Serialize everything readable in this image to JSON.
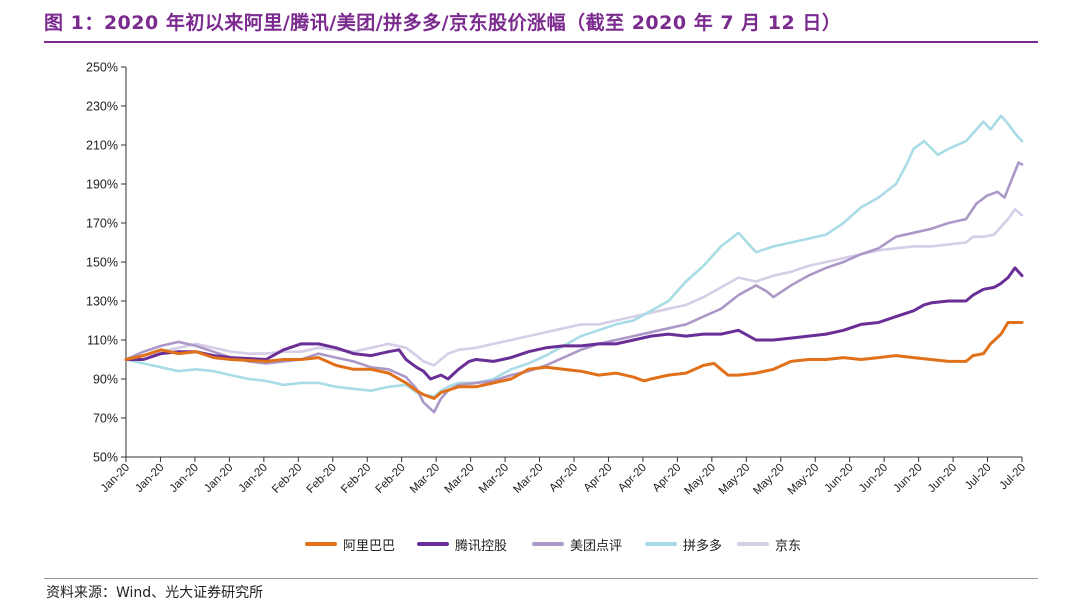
{
  "figure": {
    "title": "图 1：2020 年初以来阿里/腾讯/美团/拼多多/京东股价涨幅（截至 2020 年 7 月 12 日）",
    "source": "资料来源：Wind、光大证券研究所"
  },
  "colors": {
    "alibaba": "#e0711a",
    "tencent": "#6a2f96",
    "meituan": "#ac98c8",
    "pdd": "#a9dce6",
    "jd": "#d6cde6",
    "title": "#7b2a8e"
  },
  "chart_data": {
    "type": "line",
    "title": "2020 年初以来阿里/腾讯/美团/拼多多/京东股价涨幅（截至 2020 年 7 月 12 日）",
    "xlabel": "",
    "ylabel": "",
    "ylim": [
      50,
      250
    ],
    "yticks": [
      50,
      70,
      90,
      110,
      130,
      150,
      170,
      190,
      210,
      230,
      250
    ],
    "ytick_labels": [
      "50%",
      "70%",
      "90%",
      "110%",
      "130%",
      "150%",
      "170%",
      "190%",
      "210%",
      "230%",
      "250%"
    ],
    "grid": false,
    "legend_position": "bottom",
    "x_tick_labels": [
      "Jan-20",
      "Jan-20",
      "Jan-20",
      "Jan-20",
      "Jan-20",
      "Feb-20",
      "Feb-20",
      "Feb-20",
      "Feb-20",
      "Mar-20",
      "Mar-20",
      "Mar-20",
      "Mar-20",
      "Apr-20",
      "Apr-20",
      "Apr-20",
      "Apr-20",
      "May-20",
      "May-20",
      "May-20",
      "May-20",
      "Jun-20",
      "Jun-20",
      "Jun-20",
      "Jun-20",
      "Jul-20",
      "Jul-20"
    ],
    "x_index_range": [
      0,
      130
    ],
    "series": [
      {
        "name": "阿里巴巴",
        "key": "alibaba",
        "points": [
          [
            0,
            100
          ],
          [
            5,
            102
          ],
          [
            10,
            105
          ],
          [
            15,
            103
          ],
          [
            20,
            104
          ],
          [
            25,
            101
          ],
          [
            30,
            100
          ],
          [
            40,
            99
          ],
          [
            45,
            100
          ],
          [
            50,
            100
          ],
          [
            55,
            101
          ],
          [
            60,
            97
          ],
          [
            65,
            95
          ],
          [
            70,
            95
          ],
          [
            75,
            93
          ],
          [
            80,
            88
          ],
          [
            83,
            84
          ],
          [
            85,
            82
          ],
          [
            88,
            80
          ],
          [
            90,
            83
          ],
          [
            95,
            86
          ],
          [
            100,
            86
          ],
          [
            105,
            88
          ],
          [
            110,
            90
          ],
          [
            115,
            95
          ],
          [
            120,
            96
          ],
          [
            125,
            95
          ],
          [
            130,
            94
          ],
          [
            135,
            92
          ],
          [
            140,
            93
          ],
          [
            145,
            91
          ],
          [
            148,
            89
          ],
          [
            150,
            90
          ],
          [
            155,
            92
          ],
          [
            160,
            93
          ],
          [
            165,
            97
          ],
          [
            168,
            98
          ],
          [
            170,
            95
          ],
          [
            172,
            92
          ],
          [
            175,
            92
          ],
          [
            180,
            93
          ],
          [
            185,
            95
          ],
          [
            190,
            99
          ],
          [
            195,
            100
          ],
          [
            200,
            100
          ],
          [
            205,
            101
          ],
          [
            210,
            100
          ],
          [
            215,
            101
          ],
          [
            220,
            102
          ],
          [
            225,
            101
          ],
          [
            230,
            100
          ],
          [
            235,
            99
          ],
          [
            240,
            99
          ],
          [
            242,
            102
          ],
          [
            245,
            103
          ],
          [
            247,
            108
          ],
          [
            250,
            113
          ],
          [
            252,
            119
          ],
          [
            256,
            119
          ]
        ]
      },
      {
        "name": "腾讯控股",
        "key": "tencent",
        "points": [
          [
            0,
            100
          ],
          [
            5,
            100
          ],
          [
            10,
            103
          ],
          [
            15,
            104
          ],
          [
            20,
            104
          ],
          [
            25,
            102
          ],
          [
            30,
            101
          ],
          [
            40,
            100
          ],
          [
            45,
            105
          ],
          [
            50,
            108
          ],
          [
            55,
            108
          ],
          [
            60,
            106
          ],
          [
            65,
            103
          ],
          [
            70,
            102
          ],
          [
            75,
            104
          ],
          [
            78,
            105
          ],
          [
            80,
            100
          ],
          [
            83,
            96
          ],
          [
            85,
            94
          ],
          [
            87,
            90
          ],
          [
            90,
            92
          ],
          [
            92,
            90
          ],
          [
            95,
            95
          ],
          [
            98,
            99
          ],
          [
            100,
            100
          ],
          [
            105,
            99
          ],
          [
            110,
            101
          ],
          [
            115,
            104
          ],
          [
            120,
            106
          ],
          [
            125,
            107
          ],
          [
            130,
            107
          ],
          [
            135,
            108
          ],
          [
            140,
            108
          ],
          [
            145,
            110
          ],
          [
            150,
            112
          ],
          [
            155,
            113
          ],
          [
            160,
            112
          ],
          [
            165,
            113
          ],
          [
            170,
            113
          ],
          [
            175,
            115
          ],
          [
            180,
            110
          ],
          [
            185,
            110
          ],
          [
            190,
            111
          ],
          [
            195,
            112
          ],
          [
            200,
            113
          ],
          [
            205,
            115
          ],
          [
            210,
            118
          ],
          [
            215,
            119
          ],
          [
            220,
            122
          ],
          [
            225,
            125
          ],
          [
            228,
            128
          ],
          [
            230,
            129
          ],
          [
            235,
            130
          ],
          [
            240,
            130
          ],
          [
            242,
            133
          ],
          [
            245,
            136
          ],
          [
            248,
            137
          ],
          [
            250,
            139
          ],
          [
            252,
            142
          ],
          [
            254,
            147
          ],
          [
            256,
            143
          ]
        ]
      },
      {
        "name": "美团点评",
        "key": "meituan",
        "points": [
          [
            0,
            100
          ],
          [
            5,
            104
          ],
          [
            10,
            107
          ],
          [
            15,
            109
          ],
          [
            20,
            107
          ],
          [
            25,
            104
          ],
          [
            30,
            101
          ],
          [
            35,
            99
          ],
          [
            40,
            98
          ],
          [
            45,
            99
          ],
          [
            50,
            100
          ],
          [
            55,
            103
          ],
          [
            60,
            101
          ],
          [
            65,
            99
          ],
          [
            70,
            96
          ],
          [
            75,
            95
          ],
          [
            80,
            91
          ],
          [
            83,
            85
          ],
          [
            85,
            78
          ],
          [
            88,
            73
          ],
          [
            90,
            80
          ],
          [
            92,
            84
          ],
          [
            95,
            87
          ],
          [
            100,
            88
          ],
          [
            105,
            89
          ],
          [
            110,
            92
          ],
          [
            115,
            94
          ],
          [
            120,
            97
          ],
          [
            125,
            101
          ],
          [
            130,
            105
          ],
          [
            135,
            108
          ],
          [
            140,
            110
          ],
          [
            145,
            112
          ],
          [
            150,
            114
          ],
          [
            155,
            116
          ],
          [
            160,
            118
          ],
          [
            165,
            122
          ],
          [
            170,
            126
          ],
          [
            175,
            133
          ],
          [
            180,
            138
          ],
          [
            183,
            135
          ],
          [
            185,
            132
          ],
          [
            190,
            138
          ],
          [
            195,
            143
          ],
          [
            200,
            147
          ],
          [
            205,
            150
          ],
          [
            210,
            154
          ],
          [
            215,
            157
          ],
          [
            220,
            163
          ],
          [
            225,
            165
          ],
          [
            230,
            167
          ],
          [
            235,
            170
          ],
          [
            240,
            172
          ],
          [
            243,
            180
          ],
          [
            246,
            184
          ],
          [
            249,
            186
          ],
          [
            251,
            183
          ],
          [
            253,
            192
          ],
          [
            255,
            201
          ],
          [
            256,
            200
          ]
        ]
      },
      {
        "name": "拼多多",
        "key": "pdd",
        "points": [
          [
            0,
            100
          ],
          [
            5,
            98
          ],
          [
            10,
            96
          ],
          [
            15,
            94
          ],
          [
            20,
            95
          ],
          [
            25,
            94
          ],
          [
            30,
            92
          ],
          [
            35,
            90
          ],
          [
            40,
            89
          ],
          [
            45,
            87
          ],
          [
            50,
            88
          ],
          [
            55,
            88
          ],
          [
            60,
            86
          ],
          [
            65,
            85
          ],
          [
            70,
            84
          ],
          [
            75,
            86
          ],
          [
            80,
            87
          ],
          [
            83,
            83
          ],
          [
            85,
            82
          ],
          [
            88,
            81
          ],
          [
            90,
            84
          ],
          [
            92,
            86
          ],
          [
            95,
            88
          ],
          [
            100,
            88
          ],
          [
            105,
            90
          ],
          [
            110,
            95
          ],
          [
            115,
            98
          ],
          [
            120,
            102
          ],
          [
            125,
            107
          ],
          [
            130,
            112
          ],
          [
            135,
            115
          ],
          [
            140,
            118
          ],
          [
            145,
            120
          ],
          [
            150,
            125
          ],
          [
            155,
            130
          ],
          [
            160,
            140
          ],
          [
            165,
            148
          ],
          [
            170,
            158
          ],
          [
            175,
            165
          ],
          [
            180,
            155
          ],
          [
            185,
            158
          ],
          [
            190,
            160
          ],
          [
            195,
            162
          ],
          [
            200,
            164
          ],
          [
            205,
            170
          ],
          [
            210,
            178
          ],
          [
            215,
            183
          ],
          [
            220,
            190
          ],
          [
            223,
            200
          ],
          [
            225,
            208
          ],
          [
            228,
            212
          ],
          [
            232,
            205
          ],
          [
            235,
            208
          ],
          [
            240,
            212
          ],
          [
            245,
            222
          ],
          [
            247,
            218
          ],
          [
            250,
            225
          ],
          [
            252,
            221
          ],
          [
            254,
            216
          ],
          [
            256,
            212
          ]
        ]
      },
      {
        "name": "京东",
        "key": "jd",
        "points": [
          [
            0,
            100
          ],
          [
            5,
            102
          ],
          [
            10,
            104
          ],
          [
            15,
            106
          ],
          [
            20,
            108
          ],
          [
            25,
            106
          ],
          [
            30,
            104
          ],
          [
            35,
            103
          ],
          [
            40,
            103
          ],
          [
            45,
            104
          ],
          [
            50,
            104
          ],
          [
            55,
            106
          ],
          [
            60,
            105
          ],
          [
            65,
            104
          ],
          [
            70,
            106
          ],
          [
            75,
            108
          ],
          [
            80,
            106
          ],
          [
            83,
            102
          ],
          [
            85,
            99
          ],
          [
            88,
            97
          ],
          [
            90,
            100
          ],
          [
            92,
            103
          ],
          [
            95,
            105
          ],
          [
            100,
            106
          ],
          [
            105,
            108
          ],
          [
            110,
            110
          ],
          [
            115,
            112
          ],
          [
            120,
            114
          ],
          [
            125,
            116
          ],
          [
            130,
            118
          ],
          [
            135,
            118
          ],
          [
            140,
            120
          ],
          [
            145,
            122
          ],
          [
            150,
            124
          ],
          [
            155,
            126
          ],
          [
            160,
            128
          ],
          [
            165,
            132
          ],
          [
            170,
            137
          ],
          [
            175,
            142
          ],
          [
            180,
            140
          ],
          [
            185,
            143
          ],
          [
            190,
            145
          ],
          [
            195,
            148
          ],
          [
            200,
            150
          ],
          [
            205,
            152
          ],
          [
            210,
            154
          ],
          [
            215,
            156
          ],
          [
            220,
            157
          ],
          [
            225,
            158
          ],
          [
            230,
            158
          ],
          [
            235,
            159
          ],
          [
            240,
            160
          ],
          [
            242,
            163
          ],
          [
            245,
            163
          ],
          [
            248,
            164
          ],
          [
            250,
            168
          ],
          [
            252,
            172
          ],
          [
            254,
            177
          ],
          [
            256,
            174
          ]
        ]
      }
    ]
  }
}
